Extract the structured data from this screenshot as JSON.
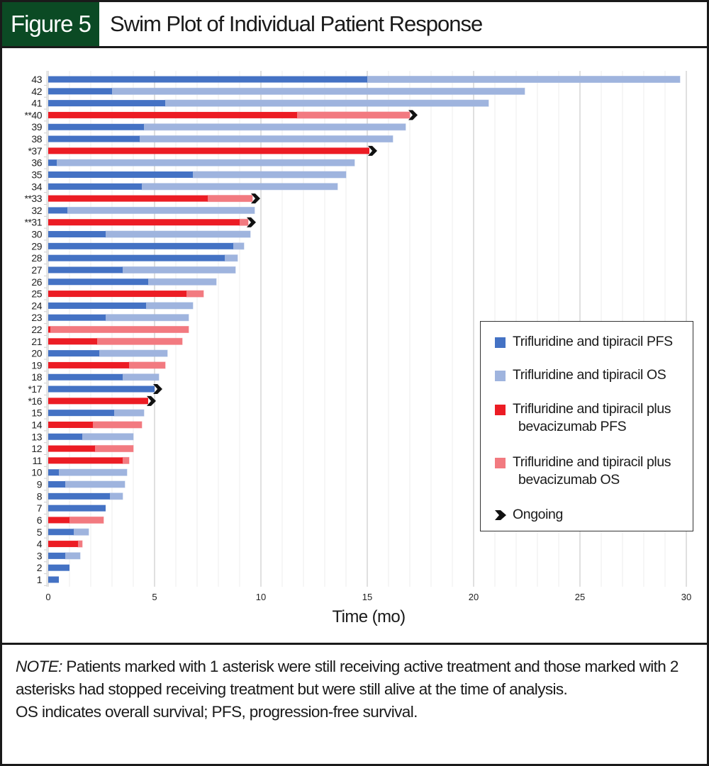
{
  "header": {
    "figure_label": "Figure 5",
    "title": "Swim Plot of Individual Patient Response"
  },
  "chart_data": {
    "type": "bar",
    "subtype": "swimmer",
    "title": "Swim Plot of Individual Patient Response",
    "xlabel": "Time (mo)",
    "ylabel": "",
    "xlim": [
      0,
      30
    ],
    "xticks": [
      0,
      5,
      10,
      15,
      20,
      25,
      30
    ],
    "xtick_labels": [
      "0",
      "5",
      "10",
      "15",
      "20",
      "25",
      "30"
    ],
    "grid": "vertical, major every 5 mo, minor every 1 mo",
    "legend_position": "right, lower-middle",
    "colors": {
      "T_PFS": "#4472C4",
      "T_OS": "#9FB4DE",
      "B_PFS": "#EC1C24",
      "B_OS": "#F27A80",
      "ongoing": "#111111"
    },
    "legend": [
      {
        "key": "T_PFS",
        "line1": "Trifluridine and tipiracil PFS",
        "line2": ""
      },
      {
        "key": "T_OS",
        "line1": "Trifluridine and tipiracil OS",
        "line2": ""
      },
      {
        "key": "B_PFS",
        "line1": "Trifluridine and tipiracil plus",
        "line2": "bevacizumab PFS"
      },
      {
        "key": "B_OS",
        "line1": "Trifluridine and tipiracil plus",
        "line2": "bevacizumab OS"
      },
      {
        "key": "ongoing",
        "line1": "Ongoing",
        "line2": ""
      }
    ],
    "patients": [
      {
        "label": "43",
        "group": "T",
        "pfs": 15.0,
        "os": 29.7,
        "ongoing": false
      },
      {
        "label": "42",
        "group": "T",
        "pfs": 3.0,
        "os": 22.4,
        "ongoing": false
      },
      {
        "label": "41",
        "group": "T",
        "pfs": 5.5,
        "os": 20.7,
        "ongoing": false
      },
      {
        "label": "**40",
        "group": "B",
        "pfs": 11.7,
        "os": 17.0,
        "ongoing": true
      },
      {
        "label": "39",
        "group": "T",
        "pfs": 4.5,
        "os": 16.8,
        "ongoing": false
      },
      {
        "label": "38",
        "group": "T",
        "pfs": 4.3,
        "os": 16.2,
        "ongoing": false
      },
      {
        "label": "*37",
        "group": "B",
        "pfs": 15.1,
        "os": 15.1,
        "ongoing": true
      },
      {
        "label": "36",
        "group": "T",
        "pfs": 0.4,
        "os": 14.4,
        "ongoing": false
      },
      {
        "label": "35",
        "group": "T",
        "pfs": 6.8,
        "os": 14.0,
        "ongoing": false
      },
      {
        "label": "34",
        "group": "T",
        "pfs": 4.4,
        "os": 13.6,
        "ongoing": false
      },
      {
        "label": "**33",
        "group": "B",
        "pfs": 7.5,
        "os": 9.6,
        "ongoing": true
      },
      {
        "label": "32",
        "group": "T",
        "pfs": 0.9,
        "os": 9.7,
        "ongoing": false
      },
      {
        "label": "**31",
        "group": "B",
        "pfs": 9.0,
        "os": 9.4,
        "ongoing": true
      },
      {
        "label": "30",
        "group": "T",
        "pfs": 2.7,
        "os": 9.5,
        "ongoing": false
      },
      {
        "label": "29",
        "group": "T",
        "pfs": 8.7,
        "os": 9.2,
        "ongoing": false
      },
      {
        "label": "28",
        "group": "T",
        "pfs": 8.3,
        "os": 8.9,
        "ongoing": false
      },
      {
        "label": "27",
        "group": "T",
        "pfs": 3.5,
        "os": 8.8,
        "ongoing": false
      },
      {
        "label": "26",
        "group": "T",
        "pfs": 4.7,
        "os": 7.9,
        "ongoing": false
      },
      {
        "label": "25",
        "group": "B",
        "pfs": 6.5,
        "os": 7.3,
        "ongoing": false
      },
      {
        "label": "24",
        "group": "T",
        "pfs": 4.6,
        "os": 6.8,
        "ongoing": false
      },
      {
        "label": "23",
        "group": "T",
        "pfs": 2.7,
        "os": 6.6,
        "ongoing": false
      },
      {
        "label": "22",
        "group": "B",
        "pfs": 0.1,
        "os": 6.6,
        "ongoing": false
      },
      {
        "label": "21",
        "group": "B",
        "pfs": 2.3,
        "os": 6.3,
        "ongoing": false
      },
      {
        "label": "20",
        "group": "T",
        "pfs": 2.4,
        "os": 5.6,
        "ongoing": false
      },
      {
        "label": "19",
        "group": "B",
        "pfs": 3.8,
        "os": 5.5,
        "ongoing": false
      },
      {
        "label": "18",
        "group": "T",
        "pfs": 3.5,
        "os": 5.2,
        "ongoing": false
      },
      {
        "label": "*17",
        "group": "T",
        "pfs": 5.0,
        "os": 5.0,
        "ongoing": true
      },
      {
        "label": "*16",
        "group": "B",
        "pfs": 4.7,
        "os": 4.7,
        "ongoing": true
      },
      {
        "label": "15",
        "group": "T",
        "pfs": 3.1,
        "os": 4.5,
        "ongoing": false
      },
      {
        "label": "14",
        "group": "B",
        "pfs": 2.1,
        "os": 4.4,
        "ongoing": false
      },
      {
        "label": "13",
        "group": "T",
        "pfs": 1.6,
        "os": 4.0,
        "ongoing": false
      },
      {
        "label": "12",
        "group": "B",
        "pfs": 2.2,
        "os": 4.0,
        "ongoing": false
      },
      {
        "label": "11",
        "group": "B",
        "pfs": 3.5,
        "os": 3.8,
        "ongoing": false
      },
      {
        "label": "10",
        "group": "T",
        "pfs": 0.5,
        "os": 3.7,
        "ongoing": false
      },
      {
        "label": "9",
        "group": "T",
        "pfs": 0.8,
        "os": 3.6,
        "ongoing": false
      },
      {
        "label": "8",
        "group": "T",
        "pfs": 2.9,
        "os": 3.5,
        "ongoing": false
      },
      {
        "label": "7",
        "group": "T",
        "pfs": 2.7,
        "os": 2.7,
        "ongoing": false
      },
      {
        "label": "6",
        "group": "B",
        "pfs": 1.0,
        "os": 2.6,
        "ongoing": false
      },
      {
        "label": "5",
        "group": "T",
        "pfs": 1.2,
        "os": 1.9,
        "ongoing": false
      },
      {
        "label": "4",
        "group": "B",
        "pfs": 1.4,
        "os": 1.6,
        "ongoing": false
      },
      {
        "label": "3",
        "group": "T",
        "pfs": 0.8,
        "os": 1.5,
        "ongoing": false
      },
      {
        "label": "2",
        "group": "T",
        "pfs": 1.0,
        "os": 1.0,
        "ongoing": false
      },
      {
        "label": "1",
        "group": "T",
        "pfs": 0.5,
        "os": 0.5,
        "ongoing": false
      }
    ]
  },
  "note": {
    "lead": "NOTE:",
    "text": " Patients marked with 1 asterisk were still receiving active treatment and those marked with 2 asterisks had stopped receiving treatment but were still alive at the time of analysis.",
    "abbreviations": "OS indicates overall survival; PFS, progression-free survival."
  }
}
